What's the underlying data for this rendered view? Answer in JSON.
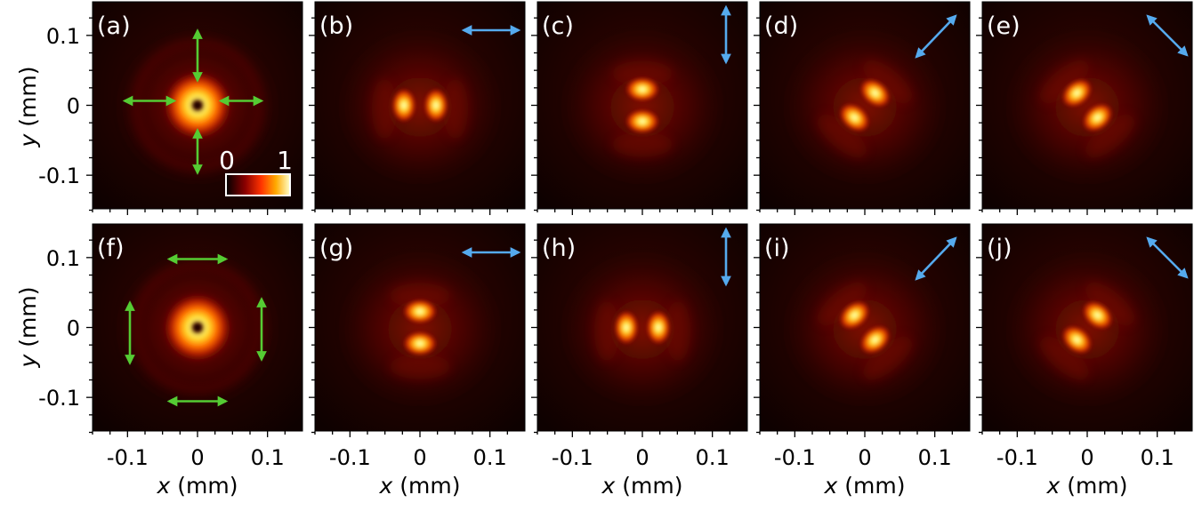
{
  "figure": {
    "colors": {
      "background": "#000000",
      "green_arrow": "#55cc33",
      "blue_arrow": "#55aaee",
      "white": "#ffffff"
    },
    "x_axis": {
      "var": "x",
      "unit": " (mm)",
      "ticks": [
        -0.1,
        0,
        0.1
      ],
      "tick_labels": [
        "-0.1",
        "0",
        "0.1"
      ]
    },
    "y_axis": {
      "var": "y",
      "unit": " (mm)",
      "ticks": [
        0.1,
        0,
        -0.1
      ],
      "tick_labels": [
        "0.1",
        "0",
        "-0.1"
      ]
    },
    "colorbar": {
      "min_label": "0",
      "max_label": "1",
      "colormap": "hot"
    },
    "panels": [
      {
        "label": "(a)",
        "row": 0,
        "col": 0,
        "pattern": "ring-donut",
        "arrows": "green-radial"
      },
      {
        "label": "(b)",
        "row": 0,
        "col": 1,
        "pattern": "two-lobes-horizontal",
        "arrow": "horizontal"
      },
      {
        "label": "(c)",
        "row": 0,
        "col": 2,
        "pattern": "two-lobes-vertical",
        "arrow": "vertical"
      },
      {
        "label": "(d)",
        "row": 0,
        "col": 3,
        "pattern": "two-lobes-diagonal-up",
        "arrow": "diagonal-up"
      },
      {
        "label": "(e)",
        "row": 0,
        "col": 4,
        "pattern": "two-lobes-diagonal-down",
        "arrow": "diagonal-down"
      },
      {
        "label": "(f)",
        "row": 1,
        "col": 0,
        "pattern": "ring-donut",
        "arrows": "green-azimuthal"
      },
      {
        "label": "(g)",
        "row": 1,
        "col": 1,
        "pattern": "two-lobes-vertical",
        "arrow": "horizontal"
      },
      {
        "label": "(h)",
        "row": 1,
        "col": 2,
        "pattern": "two-lobes-horizontal",
        "arrow": "vertical"
      },
      {
        "label": "(i)",
        "row": 1,
        "col": 3,
        "pattern": "two-lobes-diagonal-down",
        "arrow": "diagonal-up"
      },
      {
        "label": "(j)",
        "row": 1,
        "col": 4,
        "pattern": "two-lobes-diagonal-up",
        "arrow": "diagonal-down"
      }
    ]
  }
}
